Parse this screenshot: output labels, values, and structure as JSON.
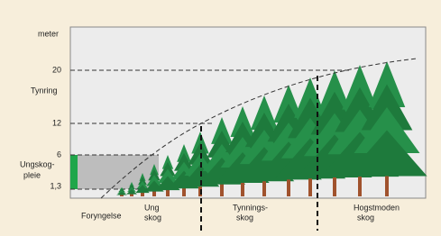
{
  "axis": {
    "unit": "meter",
    "ticks": [
      "20",
      "12",
      "6",
      "1,3"
    ]
  },
  "left_labels": {
    "thinning": "Tynring",
    "pre_commercial": [
      "Ungskog-",
      "pleie"
    ]
  },
  "stages": [
    [
      "Foryngelse"
    ],
    [
      "Ung",
      "skog"
    ],
    [
      "Tynnings-",
      "skog"
    ],
    [
      "Hogstmoden",
      "skog"
    ]
  ]
}
